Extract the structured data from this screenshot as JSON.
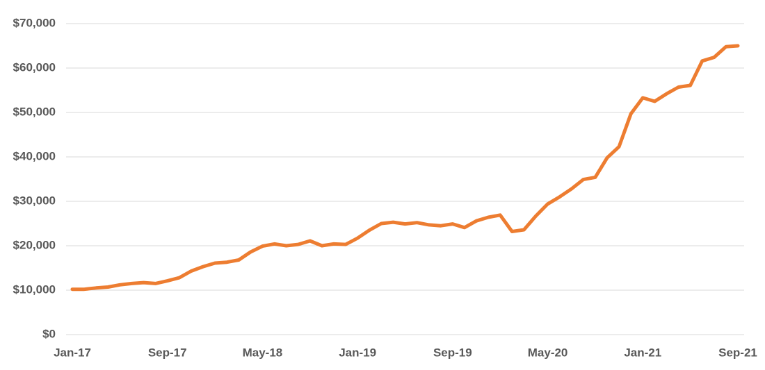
{
  "chart_data": {
    "type": "line",
    "categories": [
      "Jan-17",
      null,
      null,
      null,
      null,
      null,
      null,
      null,
      "Sep-17",
      null,
      null,
      null,
      null,
      null,
      null,
      null,
      "May-18",
      null,
      null,
      null,
      null,
      null,
      null,
      null,
      "Jan-19",
      null,
      null,
      null,
      null,
      null,
      null,
      null,
      "Sep-19",
      null,
      null,
      null,
      null,
      null,
      null,
      null,
      "May-20",
      null,
      null,
      null,
      null,
      null,
      null,
      null,
      "Jan-21",
      null,
      null,
      null,
      null,
      null,
      null,
      null,
      "Sep-21"
    ],
    "series": [
      {
        "name": "Value",
        "color": "#ed7d31",
        "values": [
          10200,
          10200,
          10500,
          10700,
          11200,
          11500,
          11700,
          11500,
          12100,
          12800,
          14300,
          15300,
          16100,
          16300,
          16800,
          18600,
          19900,
          20400,
          20000,
          20300,
          21100,
          20000,
          20400,
          20300,
          21700,
          23500,
          25000,
          25300,
          24900,
          25200,
          24700,
          24500,
          24900,
          24100,
          25600,
          26400,
          26900,
          23200,
          23600,
          26700,
          29400,
          31000,
          32800,
          34900,
          35400,
          39800,
          42300,
          49700,
          53300,
          52500,
          54200,
          55700,
          56100,
          61600,
          62400,
          64800,
          65000
        ]
      }
    ],
    "ylim": [
      0,
      70000
    ],
    "yticks": [
      {
        "value": 0,
        "label": "$0"
      },
      {
        "value": 10000,
        "label": "$10,000"
      },
      {
        "value": 20000,
        "label": "$20,000"
      },
      {
        "value": 30000,
        "label": "$30,000"
      },
      {
        "value": 40000,
        "label": "$40,000"
      },
      {
        "value": 50000,
        "label": "$50,000"
      },
      {
        "value": 60000,
        "label": "$60,000"
      },
      {
        "value": 70000,
        "label": "$70,000"
      }
    ],
    "grid": true
  }
}
